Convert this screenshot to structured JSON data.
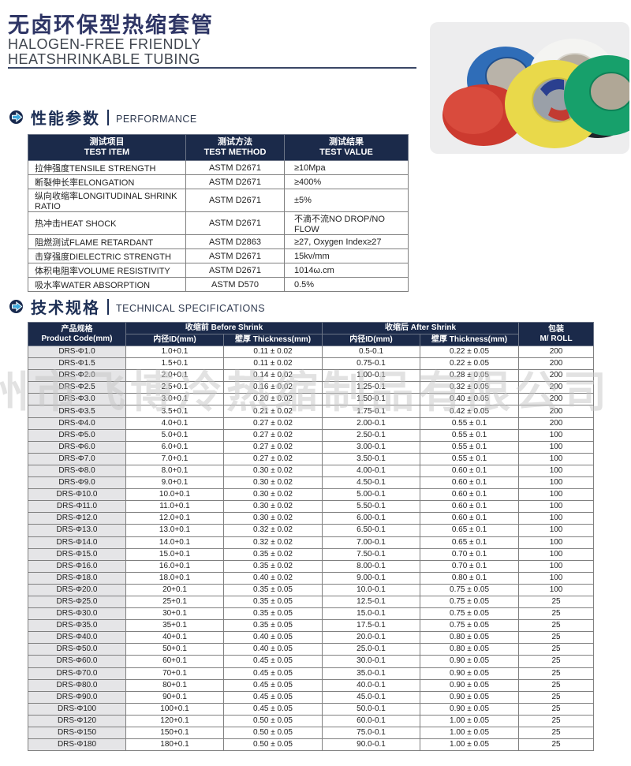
{
  "page": {
    "title": "无卤环保型热缩套管",
    "subtitle_line1": "HALOGEN-FREE FRIENDLY",
    "subtitle_line2": "HEATSHRINKABLE TUBING",
    "watermark": "州市飞博冷热缩制品有限公司"
  },
  "colors": {
    "header_navy": "#1b2a4a",
    "title_navy": "#2e3565",
    "accent_blue": "#3fa9dc",
    "first_column_gray": "#e5e5e7"
  },
  "sections": {
    "performance": {
      "title_cn": "性能参数",
      "title_en": "PERFORMANCE"
    },
    "specifications": {
      "title_cn": "技术规格",
      "title_en": "TECHNICAL SPECIFICATIONS"
    }
  },
  "performance_table": {
    "columns": [
      {
        "cn": "测试项目",
        "en": "TEST ITEM"
      },
      {
        "cn": "测试方法",
        "en": "TEST METHOD"
      },
      {
        "cn": "测试结果",
        "en": "TEST VALUE"
      }
    ],
    "rows": [
      [
        "拉伸强度TENSILE STRENGTH",
        "ASTM D2671",
        "≥10Mpa"
      ],
      [
        "断裂伸长率ELONGATION",
        "ASTM D2671",
        "≥400%"
      ],
      [
        "纵向收缩率LONGITUDINAL SHRINK RATIO",
        "ASTM D2671",
        "±5%"
      ],
      [
        "热冲击HEAT SHOCK",
        "ASTM D2671",
        "不滴不流NO DROP/NO FLOW"
      ],
      [
        "阻燃测试FLAME RETARDANT",
        "ASTM D2863",
        "≥27, Oxygen Index≥27"
      ],
      [
        "击穿强度DIELECTRIC STRENGTH",
        "ASTM D2671",
        "15kv/mm"
      ],
      [
        "体积电阻率VOLUME RESISTIVITY",
        "ASTM D2671",
        "1014ω.cm"
      ],
      [
        "吸水率WATER ABSORPTION",
        "ASTM D570",
        "0.5%"
      ]
    ]
  },
  "spec_table": {
    "header": {
      "product_cn": "产品规格",
      "product_en": "Product Code(mm)",
      "before_shrink": "收缩前 Before Shrink",
      "after_shrink": "收缩后 After Shrink",
      "id_label": "内径ID(mm)",
      "thickness_label": "壁厚 Thickness(mm)",
      "package_cn": "包装",
      "package_en": "M/ ROLL"
    },
    "rows": [
      [
        "DRS-Φ1.0",
        "1.0+0.1",
        "0.11 ± 0.02",
        "0.5-0.1",
        "0.22 ± 0.05",
        "200"
      ],
      [
        "DRS-Φ1.5",
        "1.5+0.1",
        "0.11 ± 0.02",
        "0.75-0.1",
        "0.22 ± 0.05",
        "200"
      ],
      [
        "DRS-Φ2.0",
        "2.0+0.1",
        "0.14 ± 0.02",
        "1.00-0.1",
        "0.28 ± 0.05",
        "200"
      ],
      [
        "DRS-Φ2.5",
        "2.5+0.1",
        "0.16 ± 0.02",
        "1.25-0.1",
        "0.32 ± 0.05",
        "200"
      ],
      [
        "DRS-Φ3.0",
        "3.0+0.1",
        "0.20 ± 0.02",
        "1.50-0.1",
        "0.40 ± 0.05",
        "200"
      ],
      [
        "DRS-Φ3.5",
        "3.5+0.1",
        "0.21 ± 0.02",
        "1.75-0.1",
        "0.42 ± 0.05",
        "200"
      ],
      [
        "DRS-Φ4.0",
        "4.0+0.1",
        "0.27 ± 0.02",
        "2.00-0.1",
        "0.55 ± 0.1",
        "200"
      ],
      [
        "DRS-Φ5.0",
        "5.0+0.1",
        "0.27 ± 0.02",
        "2.50-0.1",
        "0.55 ± 0.1",
        "100"
      ],
      [
        "DRS-Φ6.0",
        "6.0+0.1",
        "0.27 ± 0.02",
        "3.00-0.1",
        "0.55 ± 0.1",
        "100"
      ],
      [
        "DRS-Φ7.0",
        "7.0+0.1",
        "0.27 ± 0.02",
        "3.50-0.1",
        "0.55 ± 0.1",
        "100"
      ],
      [
        "DRS-Φ8.0",
        "8.0+0.1",
        "0.30 ± 0.02",
        "4.00-0.1",
        "0.60 ± 0.1",
        "100"
      ],
      [
        "DRS-Φ9.0",
        "9.0+0.1",
        "0.30 ± 0.02",
        "4.50-0.1",
        "0.60 ± 0.1",
        "100"
      ],
      [
        "DRS-Φ10.0",
        "10.0+0.1",
        "0.30 ± 0.02",
        "5.00-0.1",
        "0.60 ± 0.1",
        "100"
      ],
      [
        "DRS-Φ11.0",
        "11.0+0.1",
        "0.30 ± 0.02",
        "5.50-0.1",
        "0.60 ± 0.1",
        "100"
      ],
      [
        "DRS-Φ12.0",
        "12.0+0.1",
        "0.30 ± 0.02",
        "6.00-0.1",
        "0.60 ± 0.1",
        "100"
      ],
      [
        "DRS-Φ13.0",
        "13.0+0.1",
        "0.32 ± 0.02",
        "6.50-0.1",
        "0.65 ± 0.1",
        "100"
      ],
      [
        "DRS-Φ14.0",
        "14.0+0.1",
        "0.32 ± 0.02",
        "7.00-0.1",
        "0.65 ± 0.1",
        "100"
      ],
      [
        "DRS-Φ15.0",
        "15.0+0.1",
        "0.35 ± 0.02",
        "7.50-0.1",
        "0.70 ± 0.1",
        "100"
      ],
      [
        "DRS-Φ16.0",
        "16.0+0.1",
        "0.35 ± 0.02",
        "8.00-0.1",
        "0.70 ± 0.1",
        "100"
      ],
      [
        "DRS-Φ18.0",
        "18.0+0.1",
        "0.40 ± 0.02",
        "9.00-0.1",
        "0.80 ± 0.1",
        "100"
      ],
      [
        "DRS-Φ20.0",
        "20+0.1",
        "0.35 ± 0.05",
        "10.0-0.1",
        "0.75 ± 0.05",
        "100"
      ],
      [
        "DRS-Φ25.0",
        "25+0.1",
        "0.35 ± 0.05",
        "12.5-0.1",
        "0.75 ± 0.05",
        "25"
      ],
      [
        "DRS-Φ30.0",
        "30+0.1",
        "0.35 ± 0.05",
        "15.0-0.1",
        "0.75 ± 0.05",
        "25"
      ],
      [
        "DRS-Φ35.0",
        "35+0.1",
        "0.35 ± 0.05",
        "17.5-0.1",
        "0.75 ± 0.05",
        "25"
      ],
      [
        "DRS-Φ40.0",
        "40+0.1",
        "0.40 ± 0.05",
        "20.0-0.1",
        "0.80 ± 0.05",
        "25"
      ],
      [
        "DRS-Φ50.0",
        "50+0.1",
        "0.40 ± 0.05",
        "25.0-0.1",
        "0.80 ± 0.05",
        "25"
      ],
      [
        "DRS-Φ60.0",
        "60+0.1",
        "0.45 ± 0.05",
        "30.0-0.1",
        "0.90 ± 0.05",
        "25"
      ],
      [
        "DRS-Φ70.0",
        "70+0.1",
        "0.45 ± 0.05",
        "35.0-0.1",
        "0.90 ± 0.05",
        "25"
      ],
      [
        "DRS-Φ80.0",
        "80+0.1",
        "0.45 ± 0.05",
        "40.0-0.1",
        "0.90 ± 0.05",
        "25"
      ],
      [
        "DRS-Φ90.0",
        "90+0.1",
        "0.45 ± 0.05",
        "45.0-0.1",
        "0.90 ± 0.05",
        "25"
      ],
      [
        "DRS-Φ100",
        "100+0.1",
        "0.45 ± 0.05",
        "50.0-0.1",
        "0.90 ± 0.05",
        "25"
      ],
      [
        "DRS-Φ120",
        "120+0.1",
        "0.50 ± 0.05",
        "60.0-0.1",
        "1.00 ± 0.05",
        "25"
      ],
      [
        "DRS-Φ150",
        "150+0.1",
        "0.50 ± 0.05",
        "75.0-0.1",
        "1.00 ± 0.05",
        "25"
      ],
      [
        "DRS-Φ180",
        "180+0.1",
        "0.50 ± 0.05",
        "90.0-0.1",
        "1.00 ± 0.05",
        "25"
      ]
    ]
  },
  "product_photo": {
    "description": "six rolls of colored heat-shrink tubing",
    "roll_colors": [
      "#cc3a2f",
      "#2f6db8",
      "#e9d94a",
      "#f4f4f2",
      "#20242a",
      "#17a06b"
    ]
  }
}
